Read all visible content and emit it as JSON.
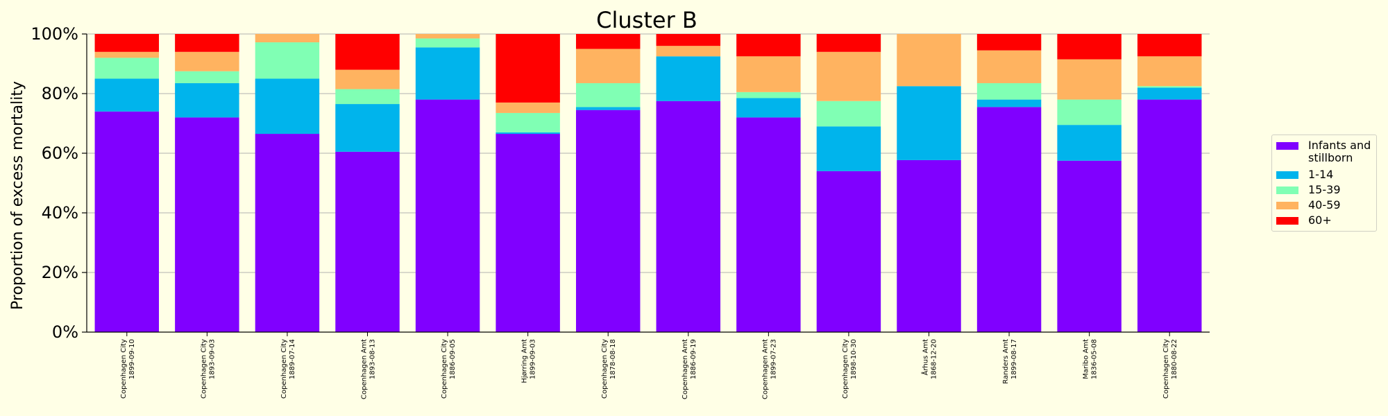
{
  "chart_data": {
    "type": "bar",
    "stacked": true,
    "title": "Cluster B",
    "xlabel": "",
    "ylabel": "Proportion of excess mortality",
    "ylim": [
      0,
      100
    ],
    "yticks": [
      "0%",
      "20%",
      "40%",
      "60%",
      "80%",
      "100%"
    ],
    "grid": true,
    "legend_position": "right",
    "categories": [
      "Copenhagen City\n1899-09-10",
      "Copenhagen City\n1893-09-03",
      "Copenhagen City\n1889-07-14",
      "Copenhagen Amt\n1893-08-13",
      "Copenhagen City\n1886-09-05",
      "Hjørring Amt\n1899-09-03",
      "Copenhagen City\n1878-08-18",
      "Copenhagen Amt\n1886-09-19",
      "Copenhagen Amt\n1899-07-23",
      "Copenhagen City\n1898-10-30",
      "Århus Amt\n1868-12-20",
      "Randers Amt\n1899-08-17",
      "Maribo Amt\n1836-05-08",
      "Copenhagen City\n1880-08-22"
    ],
    "series": [
      {
        "name": "Infants and stillborn",
        "color": "#8000ff",
        "values": [
          74,
          72,
          66.5,
          60.5,
          78,
          66.5,
          74.5,
          77.5,
          72,
          54,
          57.7,
          75.5,
          57.5,
          78
        ]
      },
      {
        "name": "1-14",
        "color": "#00b4ec",
        "values": [
          11,
          11.5,
          18.5,
          16,
          17.5,
          0.5,
          1,
          15,
          6.5,
          15,
          24.8,
          2.5,
          12,
          4
        ]
      },
      {
        "name": "15-39",
        "color": "#80ffb4",
        "values": [
          7,
          4,
          12.2,
          5,
          3,
          6.5,
          8,
          0,
          2,
          8.5,
          0,
          5.5,
          8.5,
          0.5
        ]
      },
      {
        "name": "40-59",
        "color": "#ffb360",
        "values": [
          2,
          6.5,
          2.8,
          6.5,
          1.5,
          3.5,
          11.5,
          3.5,
          12,
          16.5,
          17.5,
          11,
          13.5,
          10
        ]
      },
      {
        "name": "60+",
        "color": "#ff0000",
        "values": [
          6,
          6,
          0,
          12,
          0,
          23,
          5,
          4,
          7.5,
          6,
          0,
          5.5,
          8.5,
          7.5
        ]
      }
    ]
  }
}
